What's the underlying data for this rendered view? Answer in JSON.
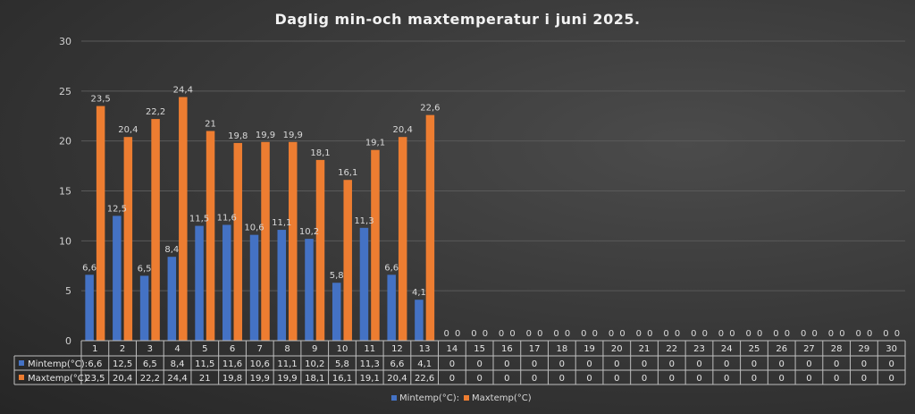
{
  "chart_data": {
    "type": "bar",
    "title": "Daglig min-och maxtemperatur i juni 2025.",
    "categories": [
      "1",
      "2",
      "3",
      "4",
      "5",
      "6",
      "7",
      "8",
      "9",
      "10",
      "11",
      "12",
      "13",
      "14",
      "15",
      "16",
      "17",
      "18",
      "19",
      "20",
      "21",
      "22",
      "23",
      "24",
      "25",
      "26",
      "27",
      "28",
      "29",
      "30"
    ],
    "ylim": [
      0,
      30
    ],
    "yticks": [
      0,
      5,
      10,
      15,
      20,
      25,
      30
    ],
    "grid": true,
    "legend_position": "bottom",
    "data_table": true,
    "series": [
      {
        "name": "Mintemp(°C):",
        "color": "#4472c4",
        "values": [
          6.6,
          12.5,
          6.5,
          8.4,
          11.5,
          11.6,
          10.6,
          11.1,
          10.2,
          5.8,
          11.3,
          6.6,
          4.1,
          0,
          0,
          0,
          0,
          0,
          0,
          0,
          0,
          0,
          0,
          0,
          0,
          0,
          0,
          0,
          0,
          0
        ],
        "labels": [
          "6,6",
          "12,5",
          "6,5",
          "8,4",
          "11,5",
          "11,6",
          "10,6",
          "11,1",
          "10,2",
          "5,8",
          "11,3",
          "6,6",
          "4,1",
          "0",
          "0",
          "0",
          "0",
          "0",
          "0",
          "0",
          "0",
          "0",
          "0",
          "0",
          "0",
          "0",
          "0",
          "0",
          "0",
          "0"
        ]
      },
      {
        "name": "Maxtemp(°C)",
        "color": "#ed7d31",
        "values": [
          23.5,
          20.4,
          22.2,
          24.4,
          21,
          19.8,
          19.9,
          19.9,
          18.1,
          16.1,
          19.1,
          20.4,
          22.6,
          0,
          0,
          0,
          0,
          0,
          0,
          0,
          0,
          0,
          0,
          0,
          0,
          0,
          0,
          0,
          0,
          0
        ],
        "labels": [
          "23,5",
          "20,4",
          "22,2",
          "24,4",
          "21",
          "19,8",
          "19,9",
          "19,9",
          "18,1",
          "16,1",
          "19,1",
          "20,4",
          "22,6",
          "0",
          "0",
          "0",
          "0",
          "0",
          "0",
          "0",
          "0",
          "0",
          "0",
          "0",
          "0",
          "0",
          "0",
          "0",
          "0",
          "0"
        ]
      }
    ]
  }
}
